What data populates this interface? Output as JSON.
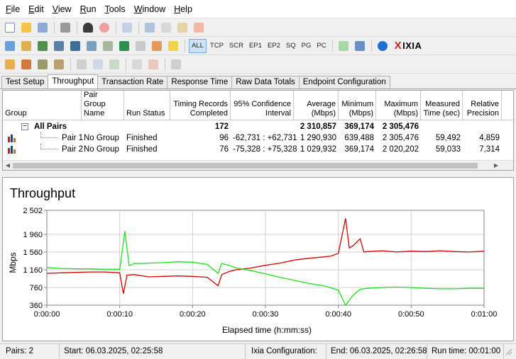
{
  "menu": [
    {
      "key": "F",
      "rest": "ile"
    },
    {
      "key": "E",
      "rest": "dit"
    },
    {
      "key": "V",
      "rest": "iew"
    },
    {
      "key": "R",
      "rest": "un"
    },
    {
      "key": "T",
      "rest": "ools"
    },
    {
      "key": "W",
      "rest": "indow"
    },
    {
      "key": "H",
      "rest": "elp"
    }
  ],
  "toolbar": {
    "protocols": [
      "ALL",
      "TCP",
      "SCR",
      "EP1",
      "EP2",
      "SQ",
      "PG",
      "PC"
    ],
    "active_protocol": "ALL",
    "brand": "IXIA",
    "brand_mark": "X"
  },
  "tabs": [
    "Test Setup",
    "Throughput",
    "Transaction Rate",
    "Response Time",
    "Raw Data Totals",
    "Endpoint Configuration"
  ],
  "active_tab": "Throughput",
  "grid": {
    "headers": {
      "group": "Group",
      "pair_group_name": "Pair Group\nName",
      "run_status": "Run Status",
      "timing_records": "Timing Records\nCompleted",
      "confidence": "95% Confidence\nInterval",
      "average": "Average\n(Mbps)",
      "minimum": "Minimum\n(Mbps)",
      "maximum": "Maximum\n(Mbps)",
      "measured_time": "Measured\nTime (sec)",
      "relative_precision": "Relative\nPrecision"
    },
    "summary": {
      "expander": "−",
      "label": "All Pairs",
      "timing_records": "172",
      "average": "2 310,857",
      "minimum": "369,174",
      "maximum": "2 305,476"
    },
    "rows": [
      {
        "pair": "Pair 1",
        "group": "No Group",
        "status": "Finished",
        "records": "96",
        "confidence": "-62,731 : +62,731",
        "average": "1 290,930",
        "minimum": "639,488",
        "maximum": "2 305,476",
        "measured": "59,492",
        "precision": "4,859"
      },
      {
        "pair": "Pair 2",
        "group": "No Group",
        "status": "Finished",
        "records": "76",
        "confidence": "-75,328 : +75,328",
        "average": "1 029,932",
        "minimum": "369,174",
        "maximum": "2 020,202",
        "measured": "59,033",
        "precision": "7,314"
      }
    ]
  },
  "chart": {
    "title": "Throughput",
    "ylabel": "Mbps",
    "xlabel": "Elapsed time (h:mm:ss)",
    "yticks": [
      "2 502",
      "1 960",
      "1 560",
      "1 160",
      "760",
      "360"
    ],
    "xticks": [
      "0:00:00",
      "0:00:10",
      "0:00:20",
      "0:00:30",
      "0:00:40",
      "0:00:50",
      "0:01:00"
    ],
    "colors": {
      "pair1": "#d00000",
      "pair2": "#22dd22",
      "grid": "#d0d0d0"
    }
  },
  "chart_data": {
    "type": "line",
    "title": "Throughput",
    "xlabel": "Elapsed time (h:mm:ss)",
    "ylabel": "Mbps",
    "xlim": [
      0,
      60
    ],
    "ylim": [
      360,
      2502
    ],
    "grid": true,
    "series": [
      {
        "name": "Pair 1",
        "color": "#d00000",
        "x": [
          0,
          2,
          4,
          6,
          8,
          10,
          10.5,
          11,
          12,
          14,
          16,
          18,
          20,
          22,
          23.5,
          24,
          25,
          26,
          28,
          30,
          32,
          34,
          36,
          38,
          39,
          40,
          41,
          41.5,
          42,
          43,
          43.5,
          44,
          46,
          48,
          50,
          52,
          54,
          56,
          58,
          60
        ],
        "y": [
          1080,
          1090,
          1100,
          1110,
          1110,
          1090,
          620,
          1040,
          1050,
          1000,
          1010,
          1020,
          1010,
          990,
          800,
          1050,
          1120,
          1160,
          1200,
          1260,
          1310,
          1380,
          1420,
          1450,
          1470,
          1530,
          2320,
          1650,
          1700,
          1860,
          1560,
          1570,
          1590,
          1560,
          1580,
          1570,
          1590,
          1570,
          1560,
          1580
        ]
      },
      {
        "name": "Pair 2",
        "color": "#22dd22",
        "x": [
          0,
          2,
          4,
          6,
          8,
          10,
          10.7,
          11.3,
          12,
          14,
          16,
          18,
          20,
          22,
          23.5,
          24,
          25,
          26,
          28,
          30,
          32,
          34,
          36,
          38,
          40,
          41,
          42,
          43,
          44,
          46,
          48,
          50,
          52,
          54,
          56,
          58,
          60
        ],
        "y": [
          1210,
          1190,
          1180,
          1180,
          1170,
          1170,
          2030,
          1250,
          1300,
          1310,
          1320,
          1340,
          1330,
          1280,
          1080,
          1300,
          1260,
          1200,
          1140,
          1070,
          990,
          920,
          850,
          800,
          700,
          360,
          580,
          720,
          740,
          760,
          770,
          760,
          740,
          730,
          730,
          740,
          740
        ]
      }
    ]
  },
  "status": {
    "pairs": "Pairs: 2",
    "start": "Start: 06.03.2025, 02:25:58",
    "config": "Ixia Configuration:",
    "end": "End: 06.03.2025, 02:26:58",
    "runtime": "Run time: 00:01:00"
  }
}
